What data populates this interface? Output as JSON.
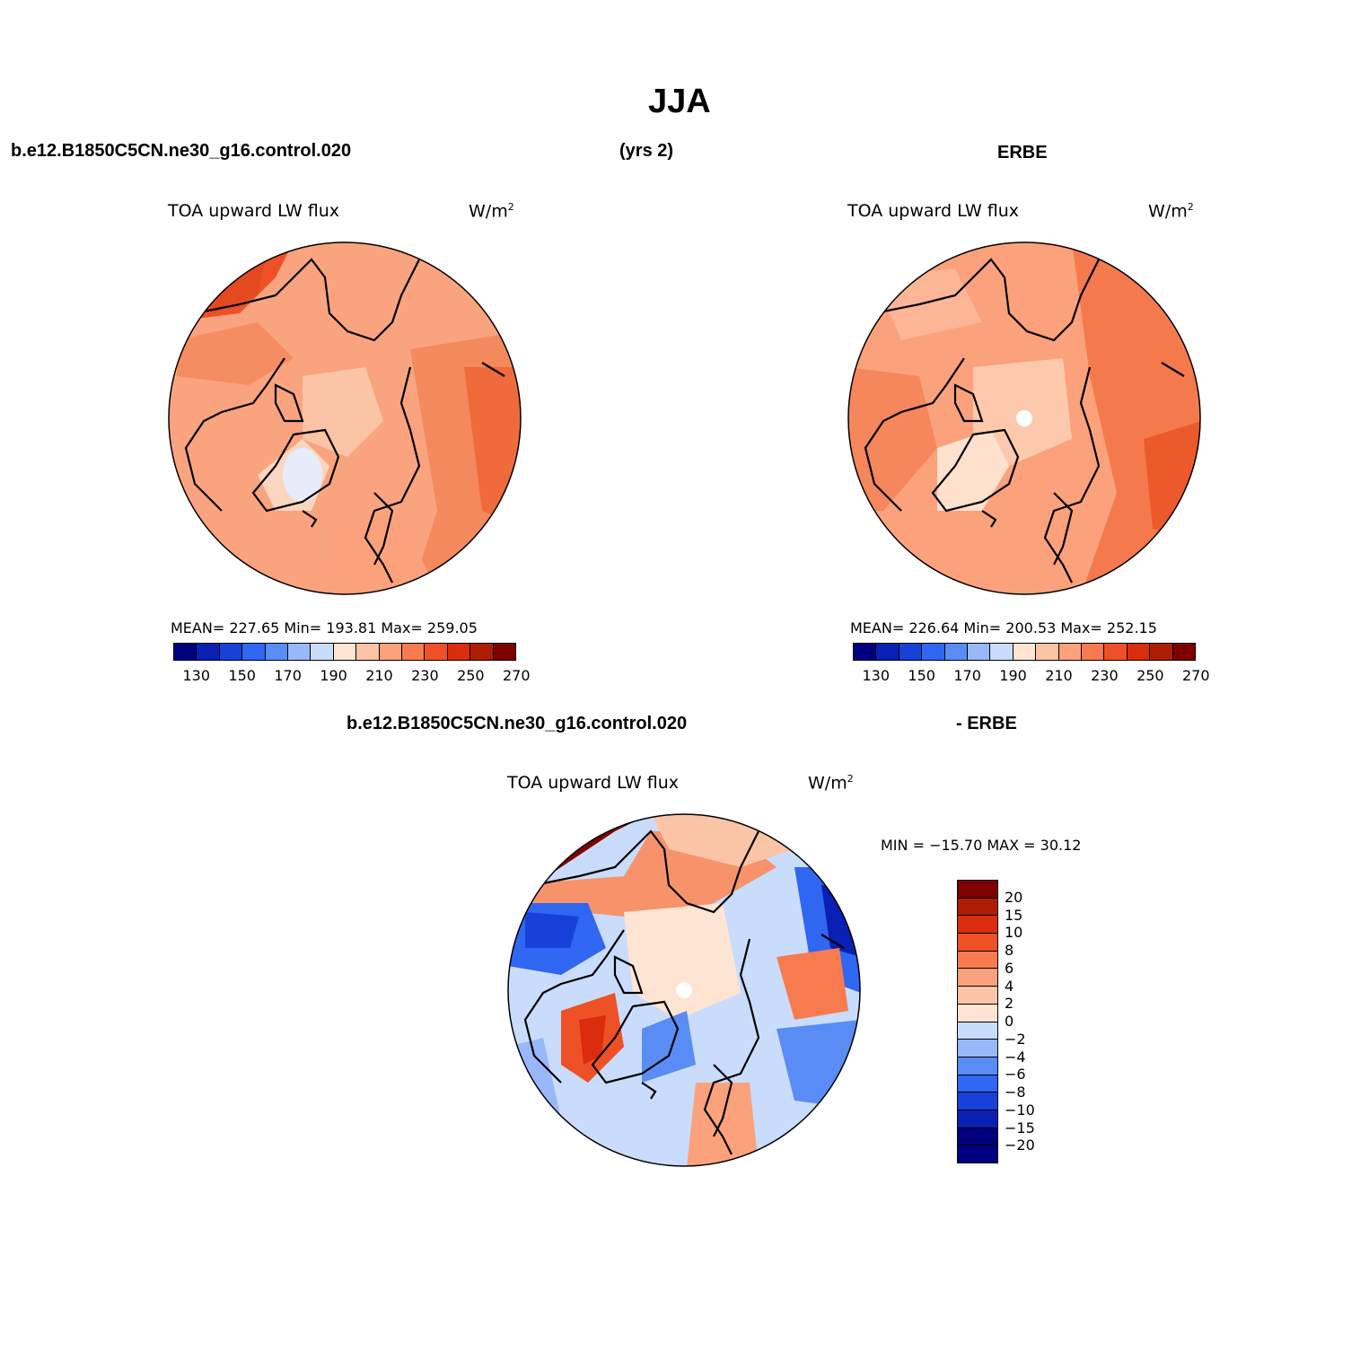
{
  "title": "JJA",
  "header": {
    "case_left": "b.e12.B1850C5CN.ne30_g16.control.020",
    "years": "(yrs 2)",
    "obs_right": "ERBE",
    "diff_case": "b.e12.B1850C5CN.ne30_g16.control.020",
    "diff_obs": "- ERBE"
  },
  "panels": {
    "model": {
      "label": "TOA upward LW flux",
      "units": "W/m",
      "units_sup": "2",
      "stats": "MEAN= 227.65   Min= 193.81   Max= 259.05"
    },
    "obs": {
      "label": "TOA upward LW flux",
      "units": "W/m",
      "units_sup": "2",
      "stats": "MEAN= 226.64   Min= 200.53   Max= 252.15"
    },
    "diff": {
      "label": "TOA upward LW flux",
      "units": "W/m",
      "units_sup": "2",
      "stats": "MIN = −15.70 MAX =   30.12"
    }
  },
  "colorbar_main": {
    "colors": [
      "#00007f",
      "#0a1fb3",
      "#1741d9",
      "#2f66f2",
      "#5a8cf5",
      "#99b8fa",
      "#c9dcfc",
      "#fee4d2",
      "#fcc4a6",
      "#fba27c",
      "#f77b4f",
      "#ee5126",
      "#d92d0d",
      "#b01d06",
      "#7f0000"
    ],
    "tick_labels": [
      "130",
      "150",
      "170",
      "190",
      "210",
      "230",
      "250",
      "270"
    ]
  },
  "colorbar_diff": {
    "colors": [
      "#7f0000",
      "#b01d06",
      "#d92d0d",
      "#ee5126",
      "#f77b4f",
      "#fba27c",
      "#fcc4a6",
      "#fee4d2",
      "#c9dcfc",
      "#99b8fa",
      "#5a8cf5",
      "#2f66f2",
      "#1741d9",
      "#0a1fb3",
      "#00007f",
      "#000080"
    ],
    "tick_labels": [
      "20",
      "15",
      "10",
      "8",
      "6",
      "4",
      "2",
      "0",
      "−2",
      "−4",
      "−6",
      "−8",
      "−10",
      "−15",
      "−20"
    ]
  }
}
